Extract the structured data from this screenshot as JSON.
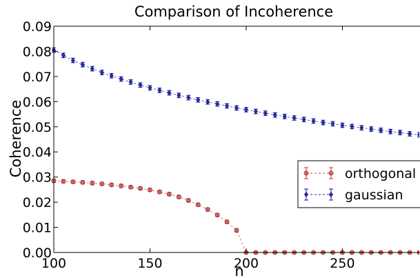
{
  "chart_data": {
    "type": "line",
    "title": "Comparison of Incoherence",
    "xlabel": "n",
    "ylabel": "Coherence",
    "xlim": [
      100,
      290
    ],
    "ylim": [
      0.0,
      0.09
    ],
    "x_ticks": [
      100,
      150,
      200,
      250
    ],
    "x_tick_labels": [
      "100",
      "150",
      "200",
      "250"
    ],
    "y_ticks": [
      0.0,
      0.01,
      0.02,
      0.03,
      0.04,
      0.05,
      0.06,
      0.07,
      0.08,
      0.09
    ],
    "y_tick_labels": [
      "0.00",
      "0.01",
      "0.02",
      "0.03",
      "0.04",
      "0.05",
      "0.06",
      "0.07",
      "0.08",
      "0.09"
    ],
    "grid": false,
    "legend_position": "center-right",
    "x": [
      100,
      105,
      110,
      115,
      120,
      125,
      130,
      135,
      140,
      145,
      150,
      155,
      160,
      165,
      170,
      175,
      180,
      185,
      190,
      195,
      200,
      205,
      210,
      215,
      220,
      225,
      230,
      235,
      240,
      245,
      250,
      255,
      260,
      265,
      270,
      275,
      280,
      285,
      290
    ],
    "series": [
      {
        "name": "orthogonal",
        "color": "#e8413f",
        "marker": "circle",
        "values": [
          0.0285,
          0.0283,
          0.0281,
          0.0279,
          0.0276,
          0.0273,
          0.0269,
          0.0265,
          0.026,
          0.0255,
          0.0249,
          0.0241,
          0.0232,
          0.0221,
          0.0207,
          0.019,
          0.0171,
          0.0149,
          0.0122,
          0.0088,
          0.0,
          0.0,
          0.0,
          0.0,
          0.0,
          0.0,
          0.0,
          0.0,
          0.0,
          0.0,
          0.0,
          0.0,
          0.0,
          0.0,
          0.0,
          0.0,
          0.0,
          0.0,
          0.0
        ],
        "errors": [
          0.0006,
          0.0006,
          0.0006,
          0.0006,
          0.0006,
          0.0006,
          0.0006,
          0.0006,
          0.0006,
          0.0006,
          0.0006,
          0.0006,
          0.0006,
          0.0006,
          0.0006,
          0.0006,
          0.0006,
          0.0006,
          0.0006,
          0.0006,
          0.0003,
          0.0003,
          0.0003,
          0.0003,
          0.0003,
          0.0003,
          0.0003,
          0.0003,
          0.0003,
          0.0003,
          0.0003,
          0.0003,
          0.0003,
          0.0003,
          0.0003,
          0.0003,
          0.0003,
          0.0003,
          0.0003
        ]
      },
      {
        "name": "gaussian",
        "color": "#2b2bd6",
        "marker": "diamond",
        "values": [
          0.0805,
          0.0784,
          0.0764,
          0.0747,
          0.0731,
          0.0716,
          0.0703,
          0.069,
          0.0678,
          0.0666,
          0.0655,
          0.0645,
          0.0635,
          0.0625,
          0.0616,
          0.0607,
          0.0599,
          0.0591,
          0.0583,
          0.0575,
          0.0568,
          0.0561,
          0.0554,
          0.0547,
          0.0541,
          0.0535,
          0.0529,
          0.0523,
          0.0517,
          0.0512,
          0.0506,
          0.0501,
          0.0496,
          0.0491,
          0.0486,
          0.0481,
          0.0477,
          0.0472,
          0.0468
        ],
        "errors": [
          0.0009,
          0.0009,
          0.0009,
          0.0009,
          0.0009,
          0.0009,
          0.0009,
          0.0009,
          0.0009,
          0.0009,
          0.0009,
          0.0009,
          0.0009,
          0.0009,
          0.0009,
          0.0009,
          0.0009,
          0.0009,
          0.0009,
          0.0009,
          0.0009,
          0.0009,
          0.0009,
          0.0009,
          0.0009,
          0.0009,
          0.0009,
          0.0009,
          0.0009,
          0.0009,
          0.0009,
          0.0009,
          0.0009,
          0.0009,
          0.0009,
          0.0009,
          0.0009,
          0.0009,
          0.0009
        ]
      }
    ]
  }
}
